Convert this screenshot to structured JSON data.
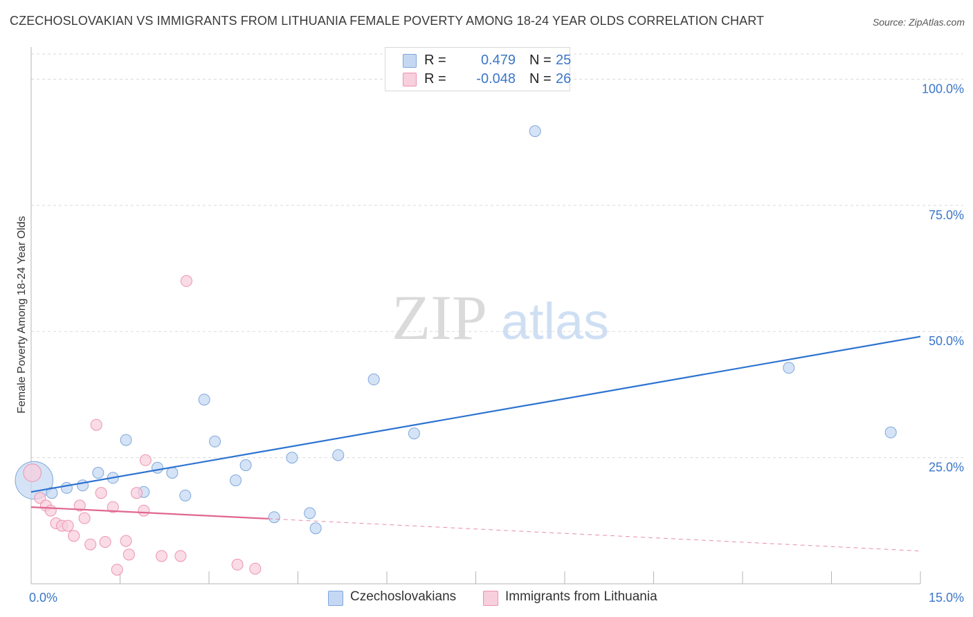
{
  "title": "CZECHOSLOVAKIAN VS IMMIGRANTS FROM LITHUANIA FEMALE POVERTY AMONG 18-24 YEAR OLDS CORRELATION CHART",
  "source": "Source: ZipAtlas.com",
  "watermark": {
    "zip": "ZIP",
    "atlas": "atlas"
  },
  "colors": {
    "blue_fill": "#c5d8f3",
    "blue_stroke": "#7ea7db",
    "blue_line": "#2b72d0",
    "pink_fill": "#f8cfdc",
    "pink_stroke": "#ec93ae",
    "pink_line": "#e0668e",
    "tick_text": "#3b76c8",
    "grid": "#d9d9d9"
  },
  "stats": [
    {
      "series": "Czechoslovakians",
      "r_label": "R =",
      "r_value": "0.479",
      "n_label": "N =",
      "n_value": "25"
    },
    {
      "series": "Immigrants from Lithuania",
      "r_label": "R =",
      "r_value": "-0.048",
      "n_label": "N =",
      "n_value": "26"
    }
  ],
  "legend": [
    {
      "label": "Czechoslovakians"
    },
    {
      "label": "Immigrants from Lithuania"
    }
  ],
  "chart_data": {
    "type": "scatter",
    "title": "CZECHOSLOVAKIAN VS IMMIGRANTS FROM LITHUANIA FEMALE POVERTY AMONG 18-24 YEAR OLDS CORRELATION CHART",
    "xlabel": "",
    "ylabel": "Female Poverty Among 18-24 Year Olds",
    "xlim": [
      0,
      15
    ],
    "ylim": [
      0,
      105
    ],
    "x_tick_labels": [
      {
        "value": 0,
        "label": "0.0%"
      },
      {
        "value": 15,
        "label": "15.0%"
      }
    ],
    "y_tick_labels": [
      {
        "value": 25,
        "label": "25.0%"
      },
      {
        "value": 50,
        "label": "50.0%"
      },
      {
        "value": 75,
        "label": "75.0%"
      },
      {
        "value": 100,
        "label": "100.0%"
      }
    ],
    "grid": true,
    "series": [
      {
        "name": "Czechoslovakians",
        "color": "blue",
        "points": [
          {
            "x": 0.05,
            "y": 20.5,
            "s": 3.4
          },
          {
            "x": 0.35,
            "y": 18.0
          },
          {
            "x": 0.6,
            "y": 19.0
          },
          {
            "x": 0.87,
            "y": 19.5
          },
          {
            "x": 1.13,
            "y": 22.0
          },
          {
            "x": 1.38,
            "y": 21.0
          },
          {
            "x": 1.6,
            "y": 28.5
          },
          {
            "x": 1.9,
            "y": 18.2
          },
          {
            "x": 2.13,
            "y": 23.0
          },
          {
            "x": 2.38,
            "y": 22.0
          },
          {
            "x": 2.6,
            "y": 17.5
          },
          {
            "x": 2.92,
            "y": 36.5
          },
          {
            "x": 3.1,
            "y": 28.2
          },
          {
            "x": 3.45,
            "y": 20.5
          },
          {
            "x": 3.62,
            "y": 23.5
          },
          {
            "x": 4.1,
            "y": 13.2
          },
          {
            "x": 4.4,
            "y": 25.0
          },
          {
            "x": 4.7,
            "y": 14.0
          },
          {
            "x": 4.8,
            "y": 11.0
          },
          {
            "x": 5.18,
            "y": 25.5
          },
          {
            "x": 5.78,
            "y": 40.5
          },
          {
            "x": 6.46,
            "y": 29.8
          },
          {
            "x": 8.5,
            "y": 89.7
          },
          {
            "x": 12.78,
            "y": 42.8
          },
          {
            "x": 14.5,
            "y": 30.0
          }
        ],
        "trend": {
          "x1": 0,
          "y1": 18.2,
          "x2": 15,
          "y2": 49.0
        }
      },
      {
        "name": "Immigrants from Lithuania",
        "color": "pink",
        "points": [
          {
            "x": 0.02,
            "y": 22.0,
            "s": 1.6
          },
          {
            "x": 0.15,
            "y": 17.0
          },
          {
            "x": 0.25,
            "y": 15.5
          },
          {
            "x": 0.33,
            "y": 14.5
          },
          {
            "x": 0.42,
            "y": 12.0
          },
          {
            "x": 0.52,
            "y": 11.5
          },
          {
            "x": 0.62,
            "y": 11.5
          },
          {
            "x": 0.72,
            "y": 9.5
          },
          {
            "x": 0.82,
            "y": 15.5
          },
          {
            "x": 0.9,
            "y": 13.0
          },
          {
            "x": 1.0,
            "y": 7.8
          },
          {
            "x": 1.1,
            "y": 31.5
          },
          {
            "x": 1.18,
            "y": 18.0
          },
          {
            "x": 1.25,
            "y": 8.3
          },
          {
            "x": 1.38,
            "y": 15.2
          },
          {
            "x": 1.45,
            "y": 2.8
          },
          {
            "x": 1.6,
            "y": 8.5
          },
          {
            "x": 1.65,
            "y": 5.8
          },
          {
            "x": 1.78,
            "y": 18.0
          },
          {
            "x": 1.9,
            "y": 14.5
          },
          {
            "x": 1.93,
            "y": 24.5
          },
          {
            "x": 2.2,
            "y": 5.5
          },
          {
            "x": 2.52,
            "y": 5.5
          },
          {
            "x": 2.62,
            "y": 60.0
          },
          {
            "x": 3.48,
            "y": 3.8
          },
          {
            "x": 3.78,
            "y": 3.0
          }
        ],
        "trend": {
          "x1": 0,
          "y1": 15.2,
          "x2": 4.0,
          "y2": 12.9
        },
        "trend_dashed": {
          "x1": 4.0,
          "y1": 12.9,
          "x2": 15,
          "y2": 6.5
        }
      }
    ]
  }
}
